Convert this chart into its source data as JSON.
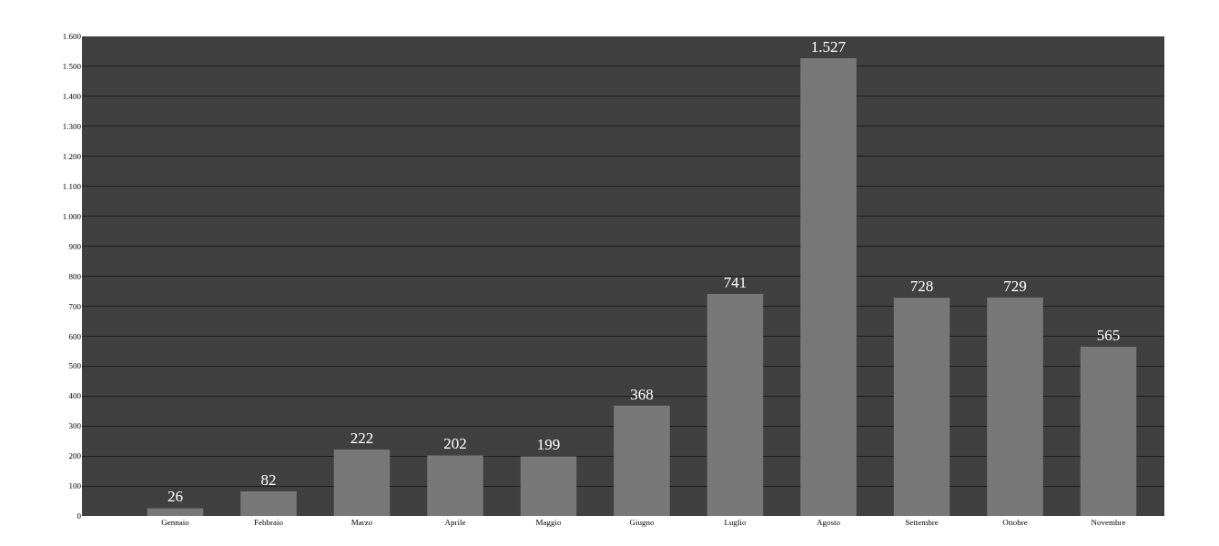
{
  "chart_data": {
    "type": "bar",
    "categories": [
      "Gennaio",
      "Febbraio",
      "Marzo",
      "Aprile",
      "Maggio",
      "Giugno",
      "Luglio",
      "Agosto",
      "Settembre",
      "Ottobre",
      "Novembre"
    ],
    "values": [
      26,
      82,
      222,
      202,
      199,
      368,
      741,
      1527,
      728,
      729,
      565
    ],
    "value_labels": [
      "26",
      "82",
      "222",
      "202",
      "199",
      "368",
      "741",
      "1.527",
      "728",
      "729",
      "565"
    ],
    "color": "#787878",
    "ylim": [
      0,
      1600
    ],
    "yticks": [
      0,
      100,
      200,
      300,
      400,
      500,
      600,
      700,
      800,
      900,
      {
        "value": 1000,
        "label": "1.000"
      },
      {
        "value": 1100,
        "label": "1.100"
      },
      {
        "value": 1200,
        "label": "1.200"
      },
      {
        "value": 1300,
        "label": "1.300"
      },
      {
        "value": 1400,
        "label": "1.400"
      },
      {
        "value": 1500,
        "label": "1.500"
      },
      {
        "value": 1600,
        "label": "1.600"
      }
    ],
    "grid": "y",
    "legend": false
  }
}
